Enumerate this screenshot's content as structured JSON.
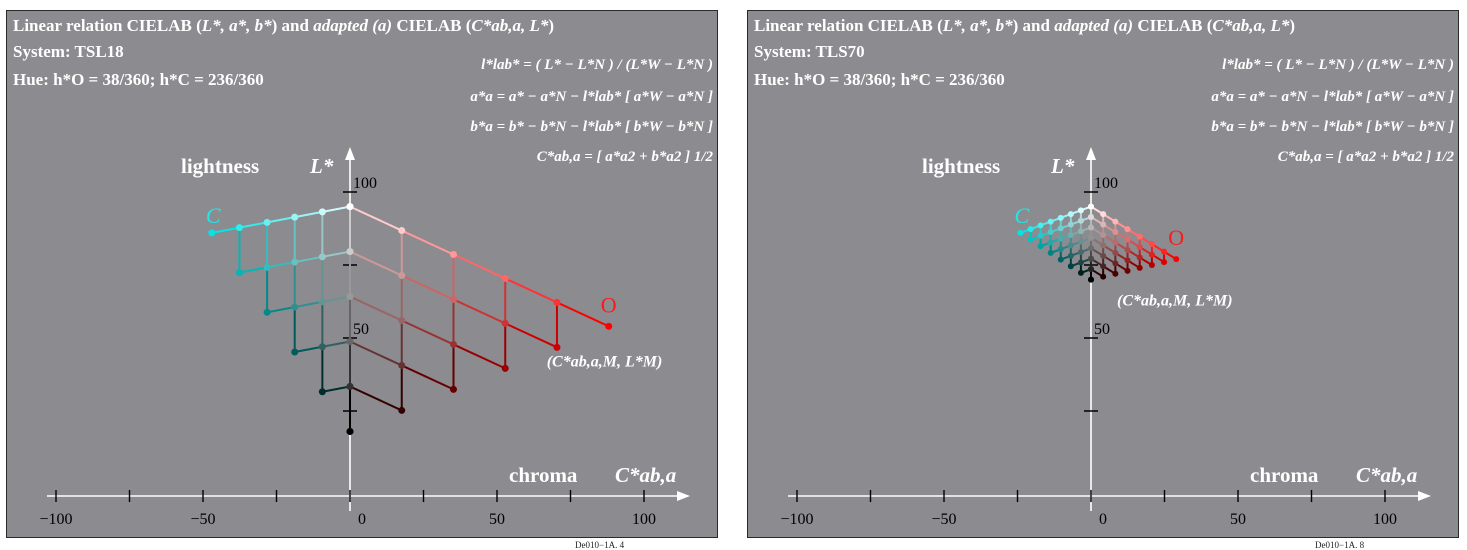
{
  "panels": [
    {
      "title_pre": "Linear relation CIELAB (",
      "title_vars1": "L*, a*, b*",
      "title_mid": ") and ",
      "title_adapted": "adapted (a)",
      "title_post": " CIELAB (",
      "title_vars2": "C*ab,a, L*",
      "title_end": ")",
      "system": "System: TSL18",
      "hue": "Hue: h*O = 38/360; h*C = 236/360",
      "footer": "De010−1A. 4"
    },
    {
      "title_pre": "Linear relation CIELAB (",
      "title_vars1": "L*, a*, b*",
      "title_mid": ") and ",
      "title_adapted": "adapted (a)",
      "title_post": " CIELAB (",
      "title_vars2": "C*ab,a, L*",
      "title_end": ")",
      "system": "System: TLS70",
      "hue": "Hue: h*O = 38/360; h*C = 236/360",
      "footer": "De010−1A. 8"
    }
  ],
  "formulas": [
    "l*lab* = ( L* − L*N ) / (L*W − L*N )",
    "a*a = a* − a*N − l*lab* [ a*W − a*N ]",
    "b*a = b* − b*N − l*lab* [ b*W − b*N ]",
    "C*ab,a = [ a*a2 + b*a2 ] 1/2"
  ],
  "labels": {
    "lightness": "lightness",
    "L_axis": "L*",
    "chroma": "chroma",
    "C_axis": "C*ab,a",
    "C": "C",
    "O": "O",
    "M_point": "(C*ab,a,M, L*M)"
  },
  "colors": {
    "background": "#8c8b90",
    "cyan": "#00e0e0",
    "red": "#ff0000",
    "white": "#ffffff",
    "black": "#000000"
  },
  "chart_data": [
    {
      "type": "scatter",
      "title": "System: TSL18",
      "xlabel": "chroma C*ab,a",
      "ylabel": "lightness L*",
      "xlim": [
        -110,
        110
      ],
      "x_ticks": [
        -100,
        -50,
        0,
        50,
        100
      ],
      "y_ticks_labeled": [
        100,
        50
      ],
      "white": {
        "x": 0,
        "y": 95
      },
      "black": {
        "x": 0,
        "y": 18
      },
      "cyan_max": {
        "x": -47,
        "y": 86
      },
      "red_max": {
        "x": 88,
        "y": 54
      },
      "steps": 5,
      "marker_size": 7
    },
    {
      "type": "scatter",
      "title": "System: TLS70",
      "xlabel": "chroma C*ab,a",
      "ylabel": "lightness L*",
      "xlim": [
        -110,
        110
      ],
      "x_ticks": [
        -100,
        -50,
        0,
        50,
        100
      ],
      "y_ticks_labeled": [
        100,
        50
      ],
      "white": {
        "x": 0,
        "y": 95
      },
      "black": {
        "x": 0,
        "y": 70
      },
      "cyan_max": {
        "x": -24,
        "y": 86
      },
      "red_max": {
        "x": 29,
        "y": 77
      },
      "steps": 7,
      "marker_size": 6
    }
  ]
}
